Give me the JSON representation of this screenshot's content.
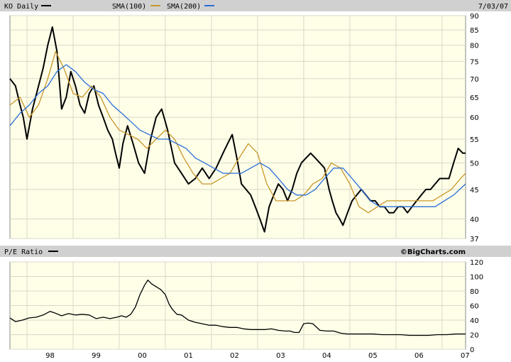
{
  "header": {
    "ticker_label": "KO Daily",
    "sma100_label": "SMA(100)",
    "sma200_label": "SMA(200)",
    "date": "7/03/07"
  },
  "lower": {
    "label": "P/E Ratio",
    "credit": "©BigCharts.com"
  },
  "colors": {
    "background": "#ffffe8",
    "panel_border": "#888888",
    "grid": "#d8d8c8",
    "header_bg": "#d0d0d0",
    "price": "#000000",
    "sma100": "#c8962a",
    "sma200": "#2a6ed8"
  },
  "chart_data": [
    {
      "type": "line",
      "title": "KO Daily",
      "scale": "log",
      "ylim": [
        37,
        90
      ],
      "y_ticks": [
        90,
        85,
        80,
        75,
        70,
        65,
        60,
        55,
        50,
        45,
        40,
        37
      ],
      "x_ticks": [
        "98",
        "99",
        "00",
        "01",
        "02",
        "03",
        "04",
        "05",
        "06",
        "07"
      ],
      "x_range": [
        1997.63,
        2007.51
      ],
      "series": [
        {
          "name": "KO Daily",
          "color": "#000000",
          "x": [
            1997.63,
            1997.75,
            1997.85,
            1997.92,
            1998.0,
            1998.12,
            1998.25,
            1998.35,
            1998.45,
            1998.55,
            1998.65,
            1998.75,
            1998.85,
            1998.95,
            1999.05,
            1999.15,
            1999.25,
            1999.35,
            1999.45,
            1999.55,
            1999.65,
            1999.75,
            1999.85,
            1999.92,
            2000.0,
            2000.08,
            2000.18,
            2000.3,
            2000.42,
            2000.55,
            2000.68,
            2000.8,
            2000.92,
            2001.05,
            2001.2,
            2001.35,
            2001.5,
            2001.65,
            2001.8,
            2001.95,
            2002.1,
            2002.25,
            2002.35,
            2002.45,
            2002.55,
            2002.65,
            2002.75,
            2002.85,
            2002.95,
            2003.05,
            2003.15,
            2003.25,
            2003.35,
            2003.45,
            2003.55,
            2003.65,
            2003.75,
            2003.85,
            2003.95,
            2004.05,
            2004.15,
            2004.25,
            2004.35,
            2004.45,
            2004.55,
            2004.62,
            2004.7,
            2004.78,
            2004.85,
            2004.95,
            2005.05,
            2005.15,
            2005.25,
            2005.35,
            2005.45,
            2005.55,
            2005.65,
            2005.75,
            2005.85,
            2005.95,
            2006.05,
            2006.15,
            2006.25,
            2006.35,
            2006.45,
            2006.55,
            2006.65,
            2006.75,
            2006.85,
            2006.95,
            2007.05,
            2007.15,
            2007.25,
            2007.35,
            2007.45,
            2007.51
          ],
          "values": [
            70,
            68,
            63,
            60,
            55,
            62,
            68,
            73,
            80,
            86,
            78,
            62,
            65,
            72,
            68,
            63,
            61,
            66,
            68,
            63,
            60,
            57,
            55,
            52,
            49,
            54,
            58,
            54,
            50,
            48,
            55,
            60,
            62,
            57,
            50,
            48,
            46,
            47,
            49,
            47,
            49,
            52,
            54,
            56,
            51,
            46,
            45,
            44,
            42,
            40,
            38,
            42,
            44,
            46,
            45,
            43,
            45,
            48,
            50,
            51,
            52,
            51,
            50,
            49,
            45,
            43,
            41,
            40,
            39,
            41,
            43,
            44,
            45,
            44,
            43,
            43,
            42,
            42,
            41,
            41,
            42,
            42,
            41,
            42,
            43,
            44,
            45,
            45,
            46,
            47,
            47,
            47,
            50,
            53,
            52,
            52
          ]
        },
        {
          "name": "SMA(100)",
          "color": "#c8962a",
          "x": [
            1997.63,
            1997.85,
            1998.05,
            1998.25,
            1998.45,
            1998.62,
            1998.8,
            1999.0,
            1999.2,
            1999.4,
            1999.6,
            1999.8,
            2000.0,
            2000.2,
            2000.4,
            2000.6,
            2000.8,
            2001.0,
            2001.2,
            2001.4,
            2001.6,
            2001.8,
            2002.0,
            2002.2,
            2002.4,
            2002.6,
            2002.8,
            2003.0,
            2003.2,
            2003.4,
            2003.6,
            2003.8,
            2004.0,
            2004.2,
            2004.4,
            2004.6,
            2004.8,
            2005.0,
            2005.2,
            2005.4,
            2005.6,
            2005.8,
            2006.0,
            2006.2,
            2006.4,
            2006.6,
            2006.8,
            2007.0,
            2007.2,
            2007.4,
            2007.51
          ],
          "values": [
            63,
            65,
            60,
            63,
            70,
            78,
            73,
            66,
            65,
            68,
            65,
            60,
            57,
            56,
            55,
            53,
            55,
            57,
            55,
            51,
            48,
            46,
            46,
            47,
            48,
            51,
            54,
            52,
            46,
            43,
            43,
            43,
            44,
            46,
            47,
            50,
            49,
            46,
            42,
            41,
            42,
            43,
            43,
            43,
            43,
            43,
            43,
            44,
            45,
            47,
            48
          ]
        },
        {
          "name": "SMA(200)",
          "color": "#2a6ed8",
          "x": [
            1997.63,
            1997.85,
            1998.05,
            1998.25,
            1998.45,
            1998.65,
            1998.85,
            1999.05,
            1999.25,
            1999.45,
            1999.65,
            1999.85,
            2000.05,
            2000.25,
            2000.45,
            2000.65,
            2000.85,
            2001.05,
            2001.25,
            2001.45,
            2001.65,
            2001.85,
            2002.05,
            2002.25,
            2002.45,
            2002.65,
            2002.85,
            2003.05,
            2003.25,
            2003.45,
            2003.65,
            2003.85,
            2004.05,
            2004.25,
            2004.45,
            2004.65,
            2004.85,
            2005.05,
            2005.25,
            2005.45,
            2005.65,
            2005.85,
            2006.05,
            2006.25,
            2006.45,
            2006.65,
            2006.85,
            2007.05,
            2007.25,
            2007.51
          ],
          "values": [
            58,
            61,
            63,
            66,
            68,
            72,
            74,
            72,
            69,
            67,
            66,
            63,
            61,
            59,
            57,
            56,
            55,
            55,
            54,
            53,
            51,
            50,
            49,
            48,
            48,
            48,
            49,
            50,
            49,
            47,
            45,
            44,
            44,
            45,
            47,
            49,
            49,
            47,
            45,
            43,
            42,
            42,
            42,
            42,
            42,
            42,
            42,
            43,
            44,
            46
          ]
        }
      ]
    },
    {
      "type": "line",
      "title": "P/E Ratio",
      "ylim": [
        0,
        120
      ],
      "y_ticks": [
        120,
        100,
        80,
        60,
        40,
        20,
        0
      ],
      "x_ticks": [
        "98",
        "99",
        "00",
        "01",
        "02",
        "03",
        "04",
        "05",
        "06",
        "07"
      ],
      "x_range": [
        1997.63,
        2007.51
      ],
      "series": [
        {
          "name": "P/E Ratio",
          "color": "#000000",
          "x": [
            1997.63,
            1997.75,
            1997.9,
            1998.05,
            1998.2,
            1998.35,
            1998.5,
            1998.6,
            1998.75,
            1998.9,
            1999.05,
            1999.2,
            1999.35,
            1999.5,
            1999.65,
            1999.8,
            1999.95,
            2000.05,
            2000.15,
            2000.25,
            2000.35,
            2000.45,
            2000.55,
            2000.62,
            2000.7,
            2000.8,
            2000.9,
            2001.0,
            2001.08,
            2001.15,
            2001.25,
            2001.35,
            2001.5,
            2001.65,
            2001.8,
            2001.95,
            2002.1,
            2002.25,
            2002.4,
            2002.55,
            2002.7,
            2002.85,
            2003.0,
            2003.15,
            2003.3,
            2003.45,
            2003.6,
            2003.7,
            2003.8,
            2003.9,
            2004.0,
            2004.1,
            2004.2,
            2004.35,
            2004.5,
            2004.65,
            2004.8,
            2004.95,
            2005.1,
            2005.3,
            2005.5,
            2005.7,
            2005.9,
            2006.1,
            2006.3,
            2006.5,
            2006.7,
            2006.9,
            2007.1,
            2007.3,
            2007.51
          ],
          "values": [
            43,
            38,
            40,
            43,
            44,
            47,
            52,
            50,
            46,
            49,
            47,
            48,
            47,
            42,
            44,
            42,
            44,
            46,
            44,
            48,
            58,
            75,
            88,
            95,
            90,
            86,
            82,
            75,
            62,
            55,
            48,
            47,
            40,
            37,
            35,
            33,
            33,
            31,
            30,
            30,
            28,
            27,
            27,
            27,
            28,
            26,
            25,
            25,
            23,
            23,
            35,
            36,
            35,
            26,
            25,
            25,
            22,
            21,
            21,
            21,
            21,
            20,
            20,
            20,
            19,
            19,
            19,
            20,
            20,
            21,
            21
          ]
        }
      ]
    }
  ]
}
